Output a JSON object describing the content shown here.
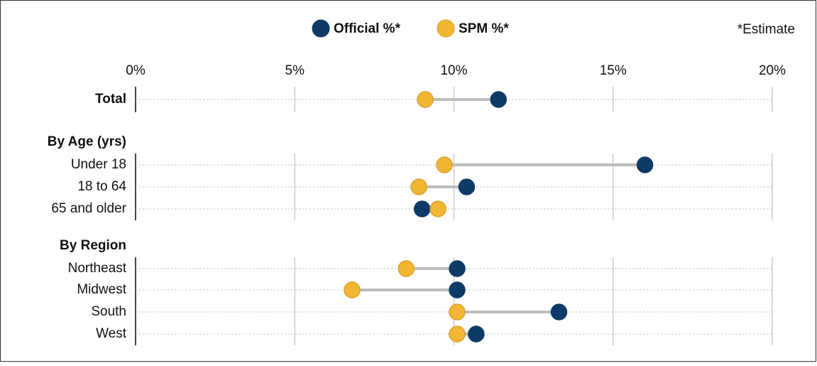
{
  "chart_data": {
    "type": "dumbbell",
    "annotation": "*Estimate",
    "categories": [
      "Total",
      "Under 18",
      "18 to 64",
      "65 and older",
      "Northeast",
      "Midwest",
      "South",
      "West"
    ],
    "groups": [
      {
        "name": "By Age (yrs)"
      },
      {
        "name": "By Region"
      }
    ],
    "series": [
      {
        "name": "Official %*",
        "color": "#0d3a66",
        "values": [
          11.4,
          16.0,
          10.4,
          9.0,
          10.1,
          10.1,
          13.3,
          10.7
        ]
      },
      {
        "name": "SPM %*",
        "color": "#f2b632",
        "values": [
          9.1,
          9.7,
          8.9,
          9.5,
          8.5,
          6.8,
          10.1,
          10.1
        ]
      }
    ],
    "xlim": [
      0,
      20
    ],
    "xticks": [
      {
        "value": 0,
        "label": "0%"
      },
      {
        "value": 5,
        "label": "5%"
      },
      {
        "value": 10,
        "label": "10%"
      },
      {
        "value": 15,
        "label": "15%"
      },
      {
        "value": 20,
        "label": "20%"
      }
    ],
    "grid": true
  }
}
